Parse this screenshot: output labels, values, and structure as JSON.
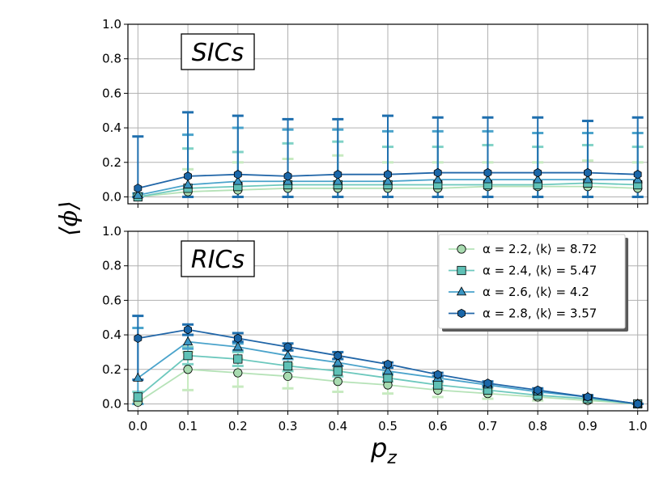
{
  "chart_data": [
    {
      "type": "line",
      "panel": "top",
      "annotation": "SICs",
      "x": [
        0.0,
        0.1,
        0.2,
        0.3,
        0.4,
        0.5,
        0.6,
        0.7,
        0.8,
        0.9,
        1.0
      ],
      "xticks": [
        "0.0",
        "0.1",
        "0.2",
        "0.3",
        "0.4",
        "0.5",
        "0.6",
        "0.7",
        "0.8",
        "0.9",
        "1.0"
      ],
      "ylim": [
        0.0,
        1.0
      ],
      "yticks": [
        "0.0",
        "0.2",
        "0.4",
        "0.6",
        "0.8",
        "1.0"
      ],
      "grid": true,
      "series": [
        {
          "name": "α = 2.2, ⟨k⟩ = 8.72",
          "values": [
            0.0,
            0.03,
            0.04,
            0.05,
            0.05,
            0.05,
            0.05,
            0.06,
            0.06,
            0.06,
            0.05
          ],
          "upper": [
            0.01,
            0.16,
            0.2,
            0.22,
            0.24,
            0.2,
            0.2,
            0.2,
            0.2,
            0.21,
            0.2
          ],
          "lower": [
            0.0,
            0.0,
            0.0,
            0.0,
            0.0,
            0.0,
            0.0,
            0.0,
            0.0,
            0.0,
            0.0
          ]
        },
        {
          "name": "α = 2.4, ⟨k⟩ = 5.47",
          "values": [
            0.0,
            0.05,
            0.06,
            0.07,
            0.07,
            0.07,
            0.07,
            0.07,
            0.07,
            0.08,
            0.07
          ],
          "upper": [
            0.02,
            0.28,
            0.26,
            0.31,
            0.32,
            0.29,
            0.29,
            0.3,
            0.29,
            0.3,
            0.29
          ],
          "lower": [
            0.0,
            0.0,
            0.0,
            0.0,
            0.0,
            0.0,
            0.0,
            0.0,
            0.0,
            0.0,
            0.0
          ]
        },
        {
          "name": "α = 2.6, ⟨k⟩ = 4.2",
          "values": [
            0.01,
            0.07,
            0.09,
            0.09,
            0.09,
            0.09,
            0.1,
            0.1,
            0.1,
            0.1,
            0.1
          ],
          "upper": [
            0.02,
            0.36,
            0.4,
            0.39,
            0.39,
            0.38,
            0.38,
            0.38,
            0.37,
            0.37,
            0.37
          ],
          "lower": [
            0.0,
            0.0,
            0.0,
            0.0,
            0.0,
            0.0,
            0.0,
            0.0,
            0.0,
            0.0,
            0.0
          ]
        },
        {
          "name": "α = 2.8, ⟨k⟩ = 3.57",
          "values": [
            0.05,
            0.12,
            0.13,
            0.12,
            0.13,
            0.13,
            0.14,
            0.14,
            0.14,
            0.14,
            0.13
          ],
          "upper": [
            0.35,
            0.49,
            0.47,
            0.45,
            0.45,
            0.47,
            0.46,
            0.46,
            0.46,
            0.44,
            0.46
          ],
          "lower": [
            0.0,
            0.0,
            0.0,
            0.0,
            0.0,
            0.0,
            0.0,
            0.0,
            0.0,
            0.0,
            0.0
          ]
        }
      ]
    },
    {
      "type": "line",
      "panel": "bottom",
      "annotation": "RICs",
      "x": [
        0.0,
        0.1,
        0.2,
        0.3,
        0.4,
        0.5,
        0.6,
        0.7,
        0.8,
        0.9,
        1.0
      ],
      "xticks": [
        "0.0",
        "0.1",
        "0.2",
        "0.3",
        "0.4",
        "0.5",
        "0.6",
        "0.7",
        "0.8",
        "0.9",
        "1.0"
      ],
      "ylim": [
        0.0,
        1.0
      ],
      "yticks": [
        "0.0",
        "0.2",
        "0.4",
        "0.6",
        "0.8",
        "1.0"
      ],
      "grid": true,
      "legend": "top-right",
      "series": [
        {
          "name": "α = 2.2, ⟨k⟩ = 8.72",
          "values": [
            0.01,
            0.2,
            0.18,
            0.16,
            0.13,
            0.11,
            0.08,
            0.06,
            0.04,
            0.02,
            0.0
          ],
          "upper": [
            0.02,
            0.3,
            0.26,
            0.23,
            0.2,
            0.16,
            0.12,
            0.09,
            0.06,
            0.03,
            0.0
          ],
          "lower": [
            0.0,
            0.08,
            0.1,
            0.09,
            0.07,
            0.06,
            0.04,
            0.03,
            0.02,
            0.01,
            0.0
          ]
        },
        {
          "name": "α = 2.4, ⟨k⟩ = 5.47",
          "values": [
            0.04,
            0.28,
            0.26,
            0.22,
            0.19,
            0.15,
            0.11,
            0.08,
            0.05,
            0.03,
            0.0
          ],
          "upper": [
            0.07,
            0.33,
            0.3,
            0.26,
            0.22,
            0.18,
            0.13,
            0.1,
            0.06,
            0.04,
            0.0
          ],
          "lower": [
            0.0,
            0.23,
            0.22,
            0.19,
            0.16,
            0.13,
            0.09,
            0.07,
            0.04,
            0.02,
            0.0
          ]
        },
        {
          "name": "α = 2.6, ⟨k⟩ = 4.2",
          "values": [
            0.15,
            0.36,
            0.33,
            0.28,
            0.24,
            0.19,
            0.15,
            0.11,
            0.07,
            0.04,
            0.0
          ],
          "upper": [
            0.44,
            0.4,
            0.35,
            0.31,
            0.26,
            0.21,
            0.16,
            0.12,
            0.08,
            0.05,
            0.0
          ],
          "lower": [
            0.0,
            0.32,
            0.31,
            0.26,
            0.22,
            0.17,
            0.13,
            0.1,
            0.06,
            0.03,
            0.0
          ]
        },
        {
          "name": "α = 2.8, ⟨k⟩ = 3.57",
          "values": [
            0.38,
            0.43,
            0.38,
            0.33,
            0.28,
            0.23,
            0.17,
            0.12,
            0.08,
            0.04,
            0.0
          ],
          "upper": [
            0.51,
            0.46,
            0.41,
            0.35,
            0.3,
            0.24,
            0.18,
            0.13,
            0.09,
            0.05,
            0.0
          ],
          "lower": [
            0.14,
            0.4,
            0.36,
            0.31,
            0.26,
            0.21,
            0.16,
            0.11,
            0.07,
            0.04,
            0.0
          ]
        }
      ]
    }
  ],
  "axes": {
    "ylabel": "⟨ϕ⟩",
    "xlabel_main": "p",
    "xlabel_sub": "z"
  },
  "legend": {
    "entries": [
      "α = 2.2, ⟨k⟩ = 8.72",
      "α = 2.4, ⟨k⟩ = 5.47",
      "α = 2.6, ⟨k⟩ = 4.2",
      "α = 2.8, ⟨k⟩ = 3.57"
    ]
  },
  "style": {
    "series_colors": [
      "#a8dbb0",
      "#5fc1b6",
      "#3b96c3",
      "#1a66a8"
    ],
    "line_colors": [
      "#b5e2b7",
      "#6cc8bd",
      "#4aa3cb",
      "#2166a8"
    ],
    "errorbar_colors": [
      "#c7eac0",
      "#80d2c6",
      "#4aa3cb",
      "#1f6fae"
    ],
    "markers": [
      "circle",
      "square",
      "triangle",
      "hexagon"
    ],
    "grid_color": "#b0b0b0"
  }
}
